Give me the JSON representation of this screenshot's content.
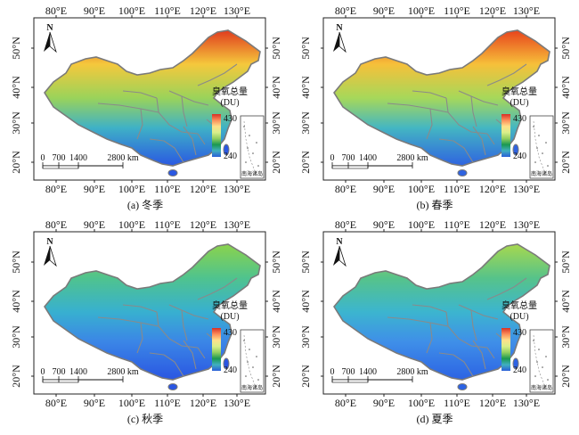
{
  "lon_ticks": [
    "80°E",
    "90°E",
    "100°E",
    "110°E",
    "120°E",
    "130°E"
  ],
  "lat_ticks": [
    "20°N",
    "30°N",
    "40°N",
    "50°N"
  ],
  "north_label": "N",
  "legend": {
    "title": "臭氧总量",
    "unit": "(DU)",
    "max": "430",
    "min": "240",
    "colors": [
      "#d73027",
      "#fc8d59",
      "#fee08b",
      "#d9ef8b",
      "#91cf60",
      "#1a9850",
      "#40b0c0",
      "#2a5fd8"
    ]
  },
  "scale_bar": {
    "labels": [
      "0",
      "700",
      "1400",
      "2800 km"
    ]
  },
  "inset_label": "南海诸岛",
  "panels": [
    {
      "caption": "(a) 冬季",
      "palette": {
        "north": "#e03b1e",
        "mid_n": "#f5c83c",
        "mid": "#9ad35a",
        "mid_s": "#3fb1c6",
        "south": "#2a58e2"
      }
    },
    {
      "caption": "(b) 春季",
      "palette": {
        "north": "#e8431c",
        "mid_n": "#f6c03a",
        "mid": "#a6d85a",
        "mid_s": "#44b6c2",
        "south": "#2f63e0"
      }
    },
    {
      "caption": "(c) 秋季",
      "palette": {
        "north": "#8bd34c",
        "mid_n": "#4fc38e",
        "mid": "#38b0d0",
        "mid_s": "#3b86e6",
        "south": "#2a56e2"
      }
    },
    {
      "caption": "(d) 夏季",
      "palette": {
        "north": "#a7d84e",
        "mid_n": "#56c38a",
        "mid": "#3cb5cf",
        "mid_s": "#3f8fe8",
        "south": "#2c63e4"
      }
    }
  ]
}
